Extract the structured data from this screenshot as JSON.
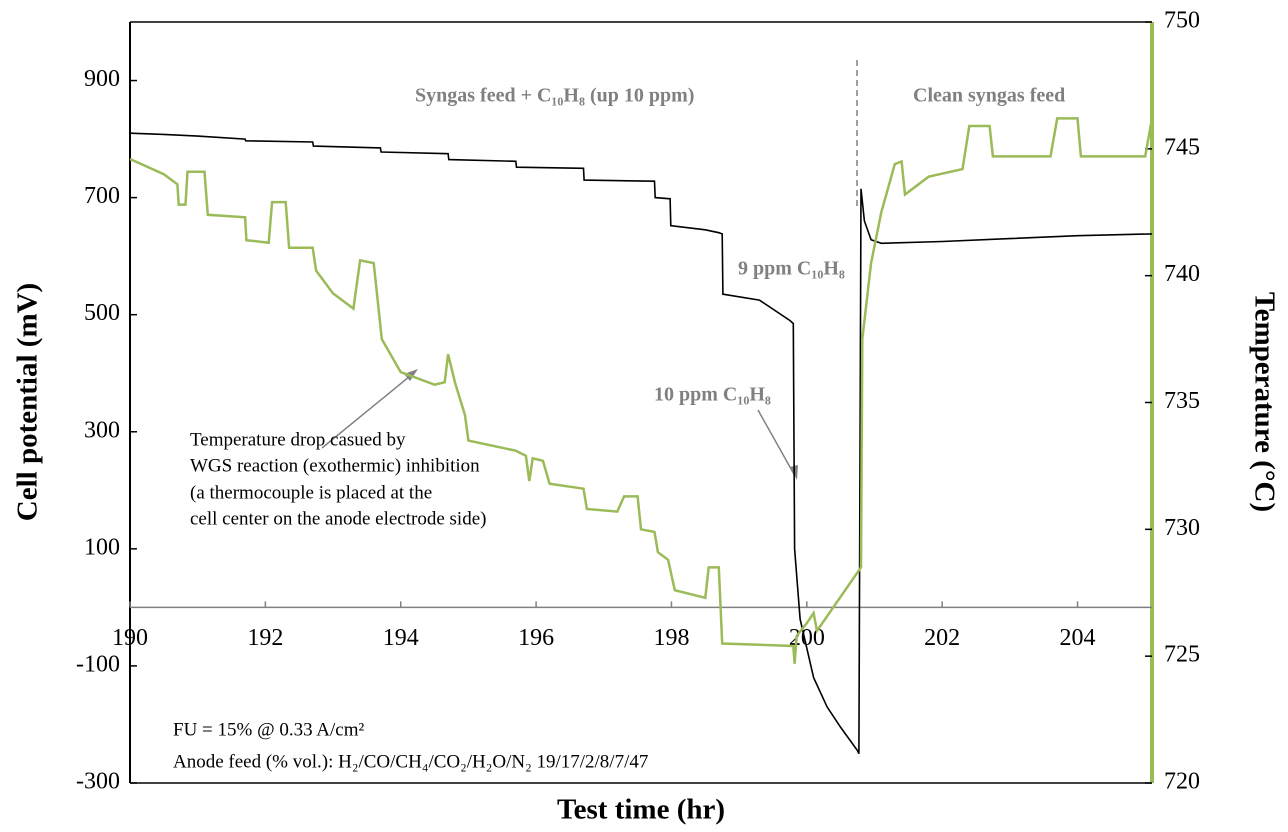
{
  "chart_data": {
    "type": "line",
    "xlabel": "Test time (hr)",
    "ylabel": "Cell potential (mV)",
    "y2label": "Temperature (°C)",
    "xlim": [
      190,
      205.1
    ],
    "xticks": [
      190,
      192,
      194,
      196,
      198,
      200,
      202,
      204
    ],
    "ylim": [
      -300,
      1000
    ],
    "yticks": [
      -300,
      -100,
      100,
      300,
      500,
      700,
      900
    ],
    "y2lim": [
      720,
      750
    ],
    "y2ticks": [
      720,
      725,
      730,
      735,
      740,
      745,
      750
    ],
    "annotations": [
      "Syngas feed + C₁₀H₈ (up 10 ppm)",
      "Clean syngas feed",
      "9 ppm C₁₀H₈",
      "10 ppm C₁₀H₈",
      "Temperature drop casued by",
      "WGS reaction (exothermic) inhibition",
      "(a thermocouple is placed at the",
      "cell center on the anode electrode side)",
      "FU = 15% @ 0.33 A/cm²",
      "Anode feed (% vol.): H₂/CO/CH₄/CO₂/H₂O/N₂ 19/17/2/8/7/47"
    ],
    "series": [
      {
        "color": "#000000",
        "x": [
          190,
          190.5,
          191,
          191.7,
          191.71,
          192.7,
          192.71,
          193.7,
          193.71,
          194.7,
          194.71,
          195.7,
          195.71,
          196.7,
          196.71,
          197.75,
          197.76,
          197.98,
          197.99,
          198.5,
          198.7,
          198.75,
          198.76,
          199.3,
          199.75,
          199.8,
          199.82,
          199.9,
          200.1,
          200.3,
          200.5,
          200.75,
          200.77,
          200.8,
          200.85,
          200.95,
          201.1,
          202,
          203,
          204,
          205.1
        ],
        "values": [
          810,
          808,
          805,
          800,
          797,
          795,
          788,
          785,
          778,
          775,
          765,
          762,
          752,
          750,
          730,
          728,
          700,
          698,
          652,
          645,
          640,
          638,
          535,
          525,
          490,
          485,
          100,
          -20,
          -120,
          -170,
          -205,
          -245,
          -250,
          715,
          660,
          628,
          622,
          625,
          630,
          635,
          638
        ]
      },
      {
        "color": "#9bbb59",
        "axis": "y2",
        "x": [
          190,
          190.5,
          190.7,
          190.72,
          190.82,
          190.85,
          191.1,
          191.15,
          191.7,
          191.72,
          192.05,
          192.1,
          192.3,
          192.35,
          192.7,
          192.75,
          193.0,
          193.3,
          193.4,
          193.6,
          193.72,
          194.0,
          194.5,
          194.65,
          194.7,
          194.8,
          194.95,
          195.0,
          195.7,
          195.85,
          195.9,
          195.95,
          196.1,
          196.2,
          196.7,
          196.75,
          197.2,
          197.3,
          197.5,
          197.55,
          197.75,
          197.8,
          197.95,
          198.05,
          198.5,
          198.55,
          198.7,
          198.75,
          199.8,
          199.82,
          199.85,
          200.0,
          200.1,
          200.15,
          200.8,
          200.82,
          200.95,
          201.1,
          201.3,
          201.4,
          201.45,
          201.8,
          202.3,
          202.4,
          202.7,
          202.75,
          203.6,
          203.7,
          204.0,
          204.05,
          205.0,
          205.1
        ],
        "values": [
          744.6,
          744.0,
          743.6,
          742.8,
          742.8,
          744.1,
          744.1,
          742.4,
          742.3,
          741.4,
          741.3,
          742.9,
          742.9,
          741.1,
          741.1,
          740.2,
          739.3,
          738.7,
          740.6,
          740.5,
          737.5,
          736.2,
          735.7,
          735.8,
          736.9,
          735.8,
          734.5,
          733.5,
          733.1,
          732.9,
          731.9,
          732.8,
          732.7,
          731.8,
          731.6,
          730.8,
          730.7,
          731.3,
          731.3,
          730.0,
          729.9,
          729.1,
          728.8,
          727.6,
          727.3,
          728.5,
          728.5,
          725.5,
          725.4,
          724.7,
          725.8,
          726.3,
          726.7,
          726.0,
          728.5,
          737.5,
          740.5,
          742.5,
          744.4,
          744.5,
          743.2,
          743.9,
          744.2,
          745.9,
          745.9,
          744.7,
          744.7,
          746.2,
          746.2,
          744.7,
          744.7,
          746.2
        ]
      }
    ]
  }
}
